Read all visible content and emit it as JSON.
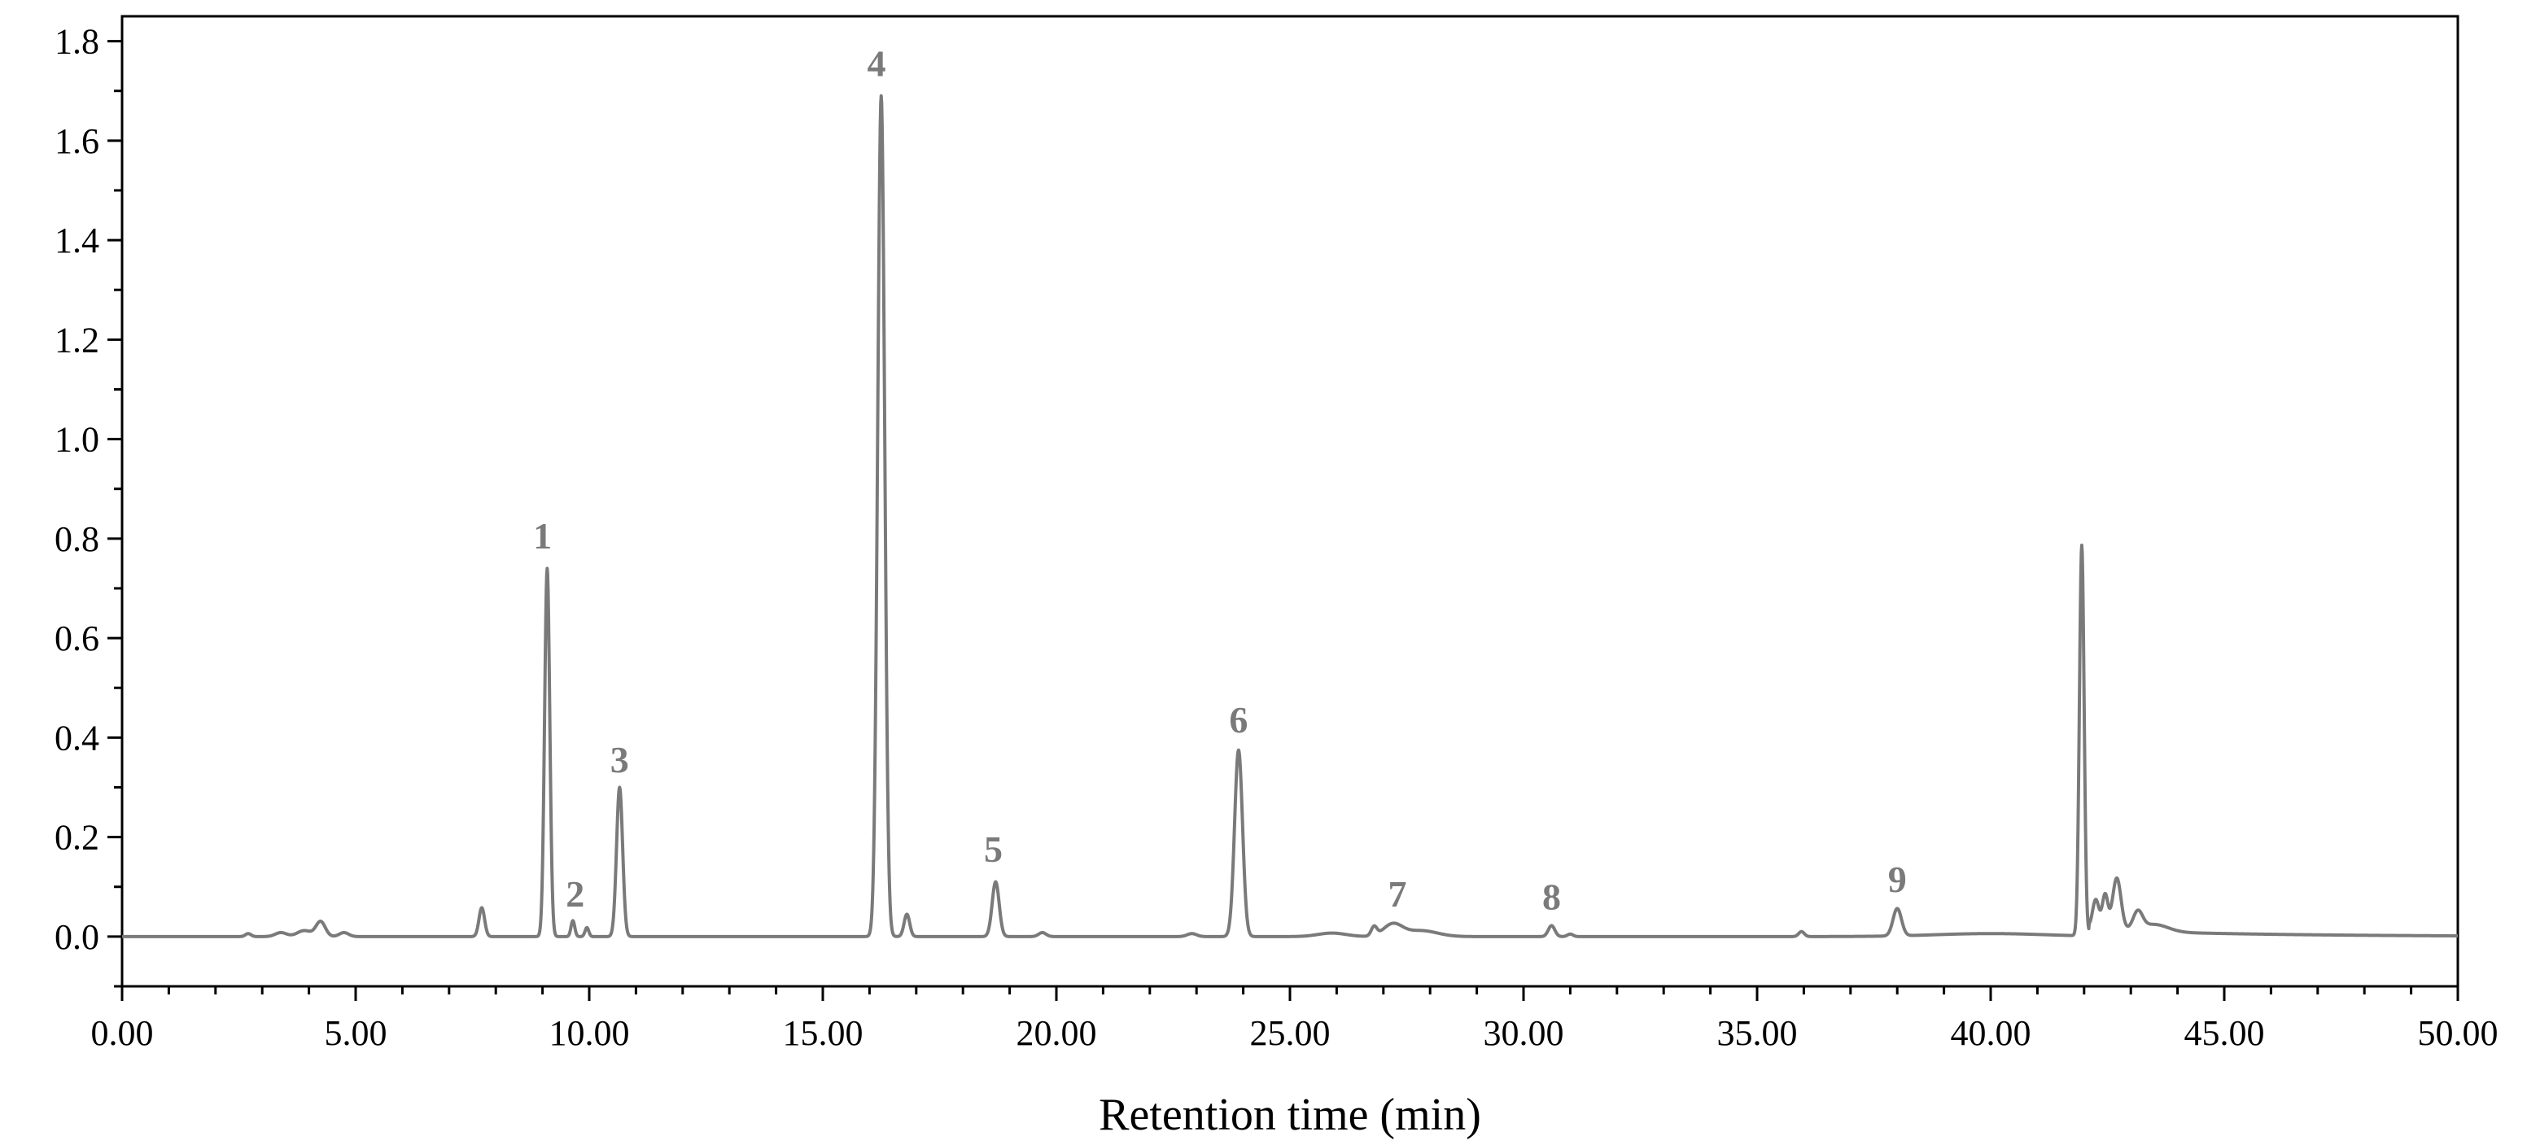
{
  "chart_data": {
    "type": "line",
    "xlabel": "Retention time (min)",
    "ylabel": "",
    "xlim": [
      0,
      50
    ],
    "ylim": [
      -0.1,
      1.85
    ],
    "x_ticks": [
      "0.00",
      "5.00",
      "10.00",
      "15.00",
      "20.00",
      "25.00",
      "30.00",
      "35.00",
      "40.00",
      "45.00",
      "50.00"
    ],
    "y_ticks": [
      "0.0",
      "0.2",
      "0.4",
      "0.6",
      "0.8",
      "1.0",
      "1.2",
      "1.4",
      "1.6",
      "1.8"
    ],
    "grid": false,
    "line_color": "#7a7a7a",
    "peaks": [
      {
        "x": 2.7,
        "h": 0.006,
        "w": 0.06
      },
      {
        "x": 3.4,
        "h": 0.008,
        "w": 0.12
      },
      {
        "x": 3.9,
        "h": 0.012,
        "w": 0.15
      },
      {
        "x": 4.25,
        "h": 0.03,
        "w": 0.1
      },
      {
        "x": 4.75,
        "h": 0.008,
        "w": 0.1
      },
      {
        "x": 7.7,
        "h": 0.058,
        "w": 0.06
      },
      {
        "x": 9.1,
        "h": 0.74,
        "w": 0.055
      },
      {
        "x": 9.65,
        "h": 0.032,
        "w": 0.04
      },
      {
        "x": 9.95,
        "h": 0.018,
        "w": 0.04
      },
      {
        "x": 10.65,
        "h": 0.3,
        "w": 0.065
      },
      {
        "x": 16.25,
        "h": 1.69,
        "w": 0.075
      },
      {
        "x": 16.8,
        "h": 0.045,
        "w": 0.06
      },
      {
        "x": 18.7,
        "h": 0.11,
        "w": 0.075
      },
      {
        "x": 19.7,
        "h": 0.008,
        "w": 0.08
      },
      {
        "x": 22.9,
        "h": 0.006,
        "w": 0.1
      },
      {
        "x": 23.9,
        "h": 0.375,
        "w": 0.085
      },
      {
        "x": 25.9,
        "h": 0.007,
        "w": 0.3
      },
      {
        "x": 26.8,
        "h": 0.018,
        "w": 0.06
      },
      {
        "x": 27.2,
        "h": 0.024,
        "w": 0.2
      },
      {
        "x": 27.8,
        "h": 0.012,
        "w": 0.35
      },
      {
        "x": 30.6,
        "h": 0.022,
        "w": 0.07
      },
      {
        "x": 31.0,
        "h": 0.005,
        "w": 0.06
      },
      {
        "x": 35.95,
        "h": 0.01,
        "w": 0.06
      },
      {
        "x": 38.0,
        "h": 0.055,
        "w": 0.09
      },
      {
        "x": 40.0,
        "h": 0.006,
        "w": 1.2
      },
      {
        "x": 41.95,
        "h": 0.785,
        "w": 0.05
      },
      {
        "x": 42.25,
        "h": 0.06,
        "w": 0.07
      },
      {
        "x": 42.45,
        "h": 0.07,
        "w": 0.06
      },
      {
        "x": 42.7,
        "h": 0.105,
        "w": 0.09
      },
      {
        "x": 43.15,
        "h": 0.035,
        "w": 0.1
      },
      {
        "x": 43.5,
        "h": 0.015,
        "w": 0.3
      }
    ],
    "tail": {
      "start": 42.1,
      "h": 0.014,
      "tau": 3.5
    },
    "annotations": [
      {
        "label": "1",
        "x": 9.0,
        "y": 0.78
      },
      {
        "label": "2",
        "x": 9.7,
        "y": 0.06
      },
      {
        "label": "3",
        "x": 10.65,
        "y": 0.33
      },
      {
        "label": "4",
        "x": 16.15,
        "y": 1.73
      },
      {
        "label": "5",
        "x": 18.65,
        "y": 0.15
      },
      {
        "label": "6",
        "x": 23.9,
        "y": 0.41
      },
      {
        "label": "7",
        "x": 27.3,
        "y": 0.06
      },
      {
        "label": "8",
        "x": 30.6,
        "y": 0.055
      },
      {
        "label": "9",
        "x": 38.0,
        "y": 0.09
      }
    ]
  }
}
